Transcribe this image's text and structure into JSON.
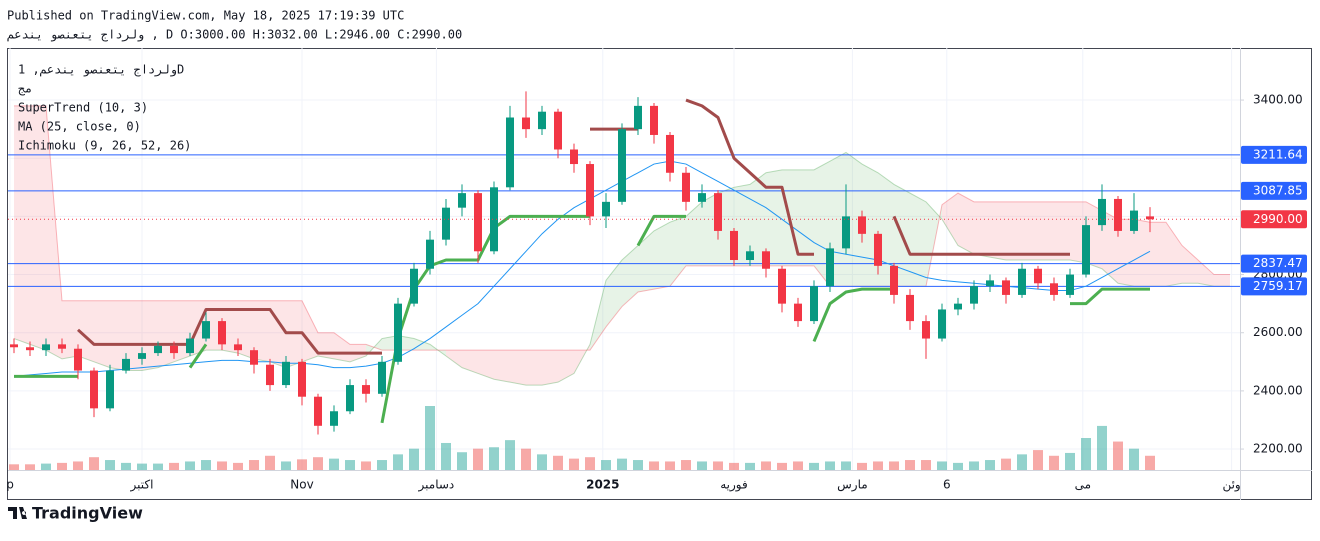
{
  "header": {
    "published": "Published on TradingView.com, May 18, 2025 17:19:39 UTC",
    "legend": "ولرداج يتعنصو يندعم , D O:3000.00 H:3032.00 L:2946.00 C:2990.00"
  },
  "footer": {
    "logo": "TradingView"
  },
  "chart_data": {
    "type": "candlestick",
    "study_labels": [
      "ولرداج يتعنصو يندعم, 1D",
      "مج",
      "SuperTrend (10, 3)",
      "MA (25, close, 0)",
      "Ichimoku (9, 26, 52, 26)"
    ],
    "up_color": "#089981",
    "down_color": "#f23645",
    "open": [
      2560,
      2550,
      2540,
      2560,
      2545,
      2470,
      2340,
      2470,
      2510,
      2530,
      2555,
      2530,
      2580,
      2640,
      2560,
      2540,
      2490,
      2420,
      2500,
      2380,
      2280,
      2330,
      2420,
      2390,
      2500,
      2700,
      2820,
      2920,
      3030,
      3080,
      2880,
      3100,
      3340,
      3300,
      3360,
      3230,
      3180,
      3000,
      3050,
      3300,
      3380,
      3280,
      3150,
      3050,
      3080,
      2950,
      2850,
      2880,
      2820,
      2700,
      2640,
      2760,
      2890,
      3000,
      2940,
      2830,
      2730,
      2640,
      2580,
      2680,
      2700,
      2760,
      2780,
      2730,
      2820,
      2770,
      2730,
      2800,
      2970,
      3060,
      2950,
      3000
    ],
    "high": [
      2580,
      2570,
      2580,
      2580,
      2560,
      2480,
      2490,
      2530,
      2550,
      2570,
      2570,
      2600,
      2670,
      2650,
      2580,
      2550,
      2510,
      2520,
      2510,
      2390,
      2350,
      2440,
      2440,
      2520,
      2720,
      2840,
      2950,
      3060,
      3110,
      3090,
      3120,
      3380,
      3430,
      3380,
      3370,
      3250,
      3190,
      3080,
      3320,
      3410,
      3390,
      3290,
      3170,
      3110,
      3090,
      2960,
      2900,
      2890,
      2830,
      2720,
      2780,
      2910,
      3110,
      3020,
      2950,
      2840,
      2750,
      2660,
      2700,
      2720,
      2780,
      2800,
      2790,
      2840,
      2830,
      2790,
      2820,
      3000,
      3110,
      3070,
      3080,
      3032
    ],
    "low": [
      2530,
      2520,
      2520,
      2530,
      2440,
      2310,
      2330,
      2460,
      2490,
      2520,
      2510,
      2520,
      2570,
      2540,
      2520,
      2460,
      2400,
      2410,
      2350,
      2250,
      2260,
      2320,
      2360,
      2380,
      2490,
      2690,
      2800,
      2900,
      3000,
      2840,
      2870,
      3090,
      3270,
      3280,
      3200,
      3150,
      2970,
      2960,
      3040,
      3280,
      3250,
      3120,
      3020,
      3030,
      2920,
      2830,
      2830,
      2790,
      2670,
      2620,
      2630,
      2740,
      2870,
      2910,
      2800,
      2700,
      2610,
      2510,
      2570,
      2660,
      2680,
      2740,
      2700,
      2720,
      2750,
      2710,
      2720,
      2790,
      2950,
      2930,
      2940,
      2946
    ],
    "close": [
      2550,
      2540,
      2560,
      2545,
      2470,
      2340,
      2470,
      2510,
      2530,
      2555,
      2530,
      2580,
      2640,
      2560,
      2540,
      2490,
      2420,
      2500,
      2380,
      2280,
      2330,
      2420,
      2390,
      2500,
      2700,
      2820,
      2920,
      3030,
      3080,
      2880,
      3100,
      3340,
      3300,
      3360,
      3230,
      3180,
      3000,
      3050,
      3300,
      3380,
      3280,
      3150,
      3050,
      3080,
      2950,
      2850,
      2880,
      2820,
      2700,
      2640,
      2760,
      2890,
      3000,
      2940,
      2830,
      2730,
      2640,
      2580,
      2680,
      2700,
      2760,
      2780,
      2730,
      2820,
      2770,
      2730,
      2800,
      2970,
      3060,
      2950,
      3020,
      2990
    ],
    "volume": {
      "up_color": "#26a69a",
      "down_color": "#ef5350",
      "values": [
        8,
        8,
        9,
        10,
        12,
        18,
        14,
        10,
        9,
        9,
        10,
        12,
        14,
        12,
        10,
        14,
        20,
        12,
        15,
        18,
        16,
        14,
        12,
        14,
        22,
        30,
        90,
        38,
        25,
        30,
        32,
        42,
        30,
        22,
        20,
        16,
        18,
        14,
        16,
        14,
        12,
        12,
        14,
        12,
        12,
        10,
        10,
        12,
        10,
        12,
        10,
        12,
        12,
        10,
        12,
        12,
        14,
        14,
        12,
        10,
        12,
        14,
        16,
        22,
        28,
        20,
        24,
        45,
        62,
        40,
        30,
        20
      ]
    },
    "ma": {
      "color": "#2196f3",
      "values": [
        2450,
        2455,
        2460,
        2465,
        2465,
        2465,
        2470,
        2475,
        2480,
        2485,
        2490,
        2495,
        2500,
        2505,
        2505,
        2500,
        2500,
        2495,
        2495,
        2490,
        2480,
        2480,
        2485,
        2495,
        2515,
        2545,
        2580,
        2620,
        2660,
        2700,
        2760,
        2820,
        2880,
        2940,
        2990,
        3030,
        3060,
        3090,
        3120,
        3150,
        3180,
        3190,
        3180,
        3150,
        3120,
        3090,
        3060,
        3030,
        2990,
        2950,
        2910,
        2880,
        2870,
        2860,
        2850,
        2830,
        2810,
        2790,
        2780,
        2775,
        2770,
        2765,
        2760,
        2755,
        2750,
        2745,
        2745,
        2760,
        2790,
        2820,
        2850,
        2880
      ]
    },
    "supertrend": {
      "up": {
        "color": "#4caf50",
        "values": [
          2450,
          2450,
          2450,
          2450,
          2450,
          null,
          null,
          null,
          null,
          null,
          null,
          2480,
          2560,
          null,
          null,
          null,
          null,
          null,
          null,
          null,
          null,
          null,
          null,
          2290,
          2580,
          2750,
          2830,
          2850,
          2850,
          2850,
          2960,
          3000,
          3000,
          3000,
          3000,
          3000,
          3000,
          null,
          null,
          2900,
          3000,
          3000,
          3000,
          null,
          null,
          null,
          null,
          null,
          null,
          null,
          2570,
          2700,
          2740,
          2750,
          2750,
          2750,
          null,
          null,
          null,
          null,
          null,
          null,
          null,
          null,
          null,
          null,
          2700,
          2700,
          2750,
          2750,
          2750,
          2750
        ]
      },
      "down": {
        "color": "#a24b4b",
        "values": [
          null,
          null,
          null,
          null,
          2610,
          2560,
          2560,
          2560,
          2560,
          2560,
          2560,
          2560,
          2680,
          2680,
          2680,
          2680,
          2680,
          2600,
          2600,
          2530,
          2530,
          2530,
          2530,
          2530,
          null,
          null,
          null,
          null,
          null,
          null,
          null,
          null,
          null,
          null,
          null,
          null,
          3300,
          3300,
          3300,
          3300,
          null,
          null,
          3400,
          3380,
          3340,
          3200,
          3150,
          3100,
          3100,
          2870,
          2870,
          null,
          null,
          null,
          null,
          3000,
          2870,
          2870,
          2870,
          2870,
          2870,
          2870,
          2870,
          2870,
          2870,
          2870,
          2870,
          null,
          null,
          null,
          null,
          null
        ]
      }
    },
    "ichimoku": {
      "span_a": {
        "color": "#43a047",
        "values": [
          2580,
          2560,
          2540,
          2510,
          2520,
          2500,
          2480,
          2470,
          2470,
          2480,
          2500,
          2520,
          2540,
          2540,
          2530,
          2510,
          2500,
          2480,
          2500,
          2520,
          2510,
          2500,
          2520,
          2580,
          2590,
          2580,
          2560,
          2520,
          2480,
          2460,
          2440,
          2430,
          2420,
          2420,
          2430,
          2460,
          2560,
          2780,
          2850,
          2900,
          2950,
          2980,
          3000,
          3050,
          3080,
          3100,
          3110,
          3150,
          3160,
          3160,
          3160,
          3190,
          3220,
          3180,
          3150,
          3110,
          3080,
          3050,
          2990,
          2900,
          2870,
          2860,
          2850,
          2850,
          2850,
          2850,
          2850,
          2840,
          2820,
          2770,
          2760,
          2760,
          2760,
          2770,
          2770,
          2760,
          2760
        ]
      },
      "span_b": {
        "color": "#f23645",
        "values": [
          3380,
          3380,
          3380,
          2710,
          2710,
          2710,
          2710,
          2710,
          2710,
          2710,
          2710,
          2710,
          2710,
          2710,
          2710,
          2710,
          2710,
          2710,
          2710,
          2600,
          2600,
          2560,
          2560,
          2540,
          2540,
          2540,
          2540,
          2540,
          2540,
          2540,
          2540,
          2540,
          2540,
          2540,
          2540,
          2540,
          2540,
          2620,
          2690,
          2740,
          2750,
          2760,
          2830,
          2830,
          2830,
          2830,
          2830,
          2830,
          2830,
          2830,
          2830,
          2760,
          2760,
          2760,
          2760,
          2760,
          2760,
          2760,
          3040,
          3080,
          3050,
          3050,
          3050,
          3050,
          3050,
          3050,
          3050,
          3050,
          3020,
          2990,
          2990,
          2980,
          2980,
          2900,
          2850,
          2800,
          2800
        ]
      }
    },
    "price_lines": {
      "color": "#2962ff",
      "values": [
        3211.64,
        3087.85,
        2837.47,
        2759.17
      ]
    },
    "last_price": {
      "color": "#f23645",
      "value": 2990,
      "label": "2990.00"
    },
    "xlim": [
      -0.375,
      76.625
    ],
    "xticks": [
      {
        "value": -0.25,
        "label": "p"
      },
      {
        "value": 8,
        "label": "اكتبر"
      },
      {
        "value": 18,
        "label": "Nov"
      },
      {
        "value": 26.4,
        "label": "دسامبر"
      },
      {
        "value": 36.8,
        "label": "2025"
      },
      {
        "value": 45,
        "label": "فوريه"
      },
      {
        "value": 52.4,
        "label": "مارس"
      },
      {
        "value": 58.3,
        "label": "6"
      },
      {
        "value": 66.8,
        "label": "مى"
      },
      {
        "value": 76.1,
        "label": "وئن"
      }
    ],
    "ylim": [
      2128,
      3579
    ],
    "yticks": [
      {
        "value": 2200,
        "label": "2200.00"
      },
      {
        "value": 2400,
        "label": "2400.00"
      },
      {
        "value": 2600,
        "label": "2600.00"
      },
      {
        "value": 2800,
        "label": "2800.00"
      },
      {
        "value": 3000,
        "label": "3000.00"
      },
      {
        "value": 3200,
        "label": "3200.00"
      },
      {
        "value": 3400,
        "label": "3400.00"
      }
    ],
    "grid": true
  }
}
